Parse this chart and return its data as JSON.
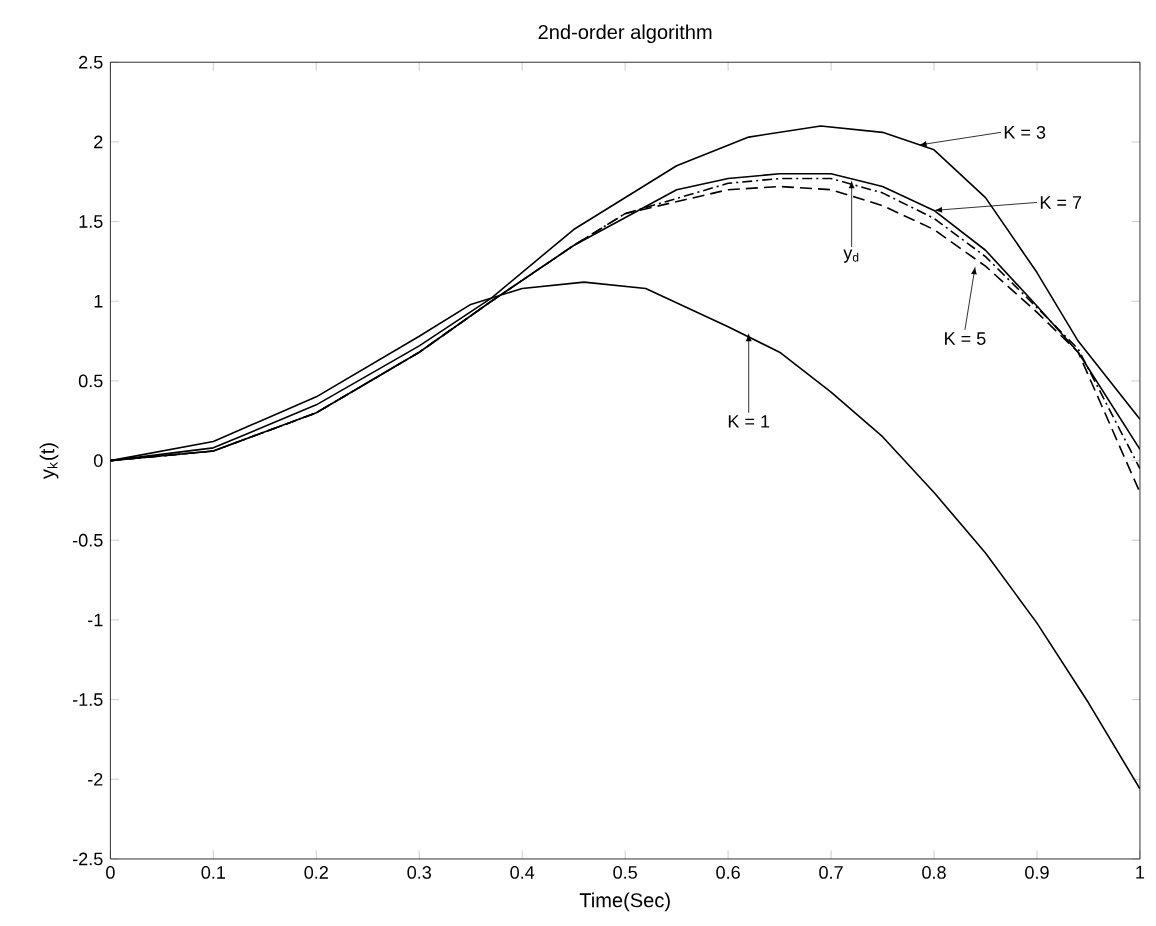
{
  "chart_data": {
    "type": "line",
    "title": "2nd-order algorithm",
    "xlabel": "Time(Sec)",
    "ylabel": "y$_{k}$(t)",
    "xlim": [
      0,
      1
    ],
    "xticks": [
      0,
      0.1,
      0.2,
      0.3,
      0.4,
      0.5,
      0.6,
      0.7,
      0.8,
      0.9,
      1
    ],
    "ylim": [
      -2.5,
      2.5
    ],
    "yticks": [
      -2.5,
      -2,
      -1.5,
      -1,
      -0.5,
      0,
      0.5,
      1,
      1.5,
      2,
      2.5
    ],
    "marker": "none",
    "series": [
      {
        "color": "#000000",
        "line_style": "solid",
        "x": [
          0,
          0.1,
          0.2,
          0.3,
          0.35,
          0.4,
          0.46,
          0.52,
          0.6,
          0.65,
          0.7,
          0.75,
          0.8,
          0.85,
          0.9,
          0.95,
          1
        ],
        "values": [
          0,
          0.12,
          0.4,
          0.78,
          0.98,
          1.08,
          1.12,
          1.08,
          0.84,
          0.68,
          0.43,
          0.15,
          -0.2,
          -0.58,
          -1.02,
          -1.52,
          -2.06
        ]
      },
      {
        "color": "#000000",
        "line_style": "solid",
        "x": [
          0,
          0.1,
          0.2,
          0.3,
          0.37,
          0.45,
          0.55,
          0.62,
          0.69,
          0.75,
          0.8,
          0.85,
          0.9,
          0.94,
          1
        ],
        "values": [
          0,
          0.08,
          0.35,
          0.72,
          1.02,
          1.45,
          1.85,
          2.03,
          2.1,
          2.06,
          1.95,
          1.65,
          1.18,
          0.75,
          0.26
        ]
      },
      {
        "color": "#000000",
        "line_style": "solid",
        "x": [
          0,
          0.1,
          0.2,
          0.3,
          0.37,
          0.45,
          0.55,
          0.6,
          0.65,
          0.7,
          0.75,
          0.8,
          0.85,
          0.9,
          0.94,
          1
        ],
        "values": [
          0,
          0.06,
          0.3,
          0.68,
          1.0,
          1.35,
          1.7,
          1.77,
          1.8,
          1.8,
          1.72,
          1.57,
          1.32,
          0.97,
          0.68,
          0.07
        ]
      },
      {
        "color": "#000000",
        "line_style": "dashed",
        "x": [
          0,
          0.1,
          0.2,
          0.3,
          0.37,
          0.45,
          0.5,
          0.6,
          0.65,
          0.7,
          0.75,
          0.8,
          0.85,
          0.9,
          0.94,
          1
        ],
        "values": [
          0,
          0.06,
          0.3,
          0.68,
          1.0,
          1.35,
          1.55,
          1.7,
          1.72,
          1.7,
          1.6,
          1.45,
          1.22,
          0.93,
          0.68,
          -0.2
        ]
      },
      {
        "color": "#000000",
        "line_style": "dotted",
        "x": [
          0,
          0.1,
          0.2,
          0.3,
          0.37,
          0.45,
          0.5,
          0.6,
          0.65,
          0.7,
          0.75,
          0.8,
          0.85,
          0.9,
          0.94,
          1
        ],
        "values": [
          0,
          0.06,
          0.3,
          0.68,
          1.0,
          1.35,
          1.55,
          1.74,
          1.77,
          1.77,
          1.68,
          1.52,
          1.28,
          0.96,
          0.7,
          -0.05
        ]
      }
    ],
    "annotations": [
      {
        "text": "K = 1",
        "x": 0.62,
        "y": 0.8
      },
      {
        "text": "K = 3",
        "x": 0.785,
        "y": 1.98
      },
      {
        "text": "K = 7",
        "x": 0.8,
        "y": 1.57
      },
      {
        "text": "y$_{d}$",
        "x": 0.72,
        "y": 1.76
      },
      {
        "text": "K = 5",
        "x": 0.84,
        "y": 1.22
      }
    ]
  }
}
